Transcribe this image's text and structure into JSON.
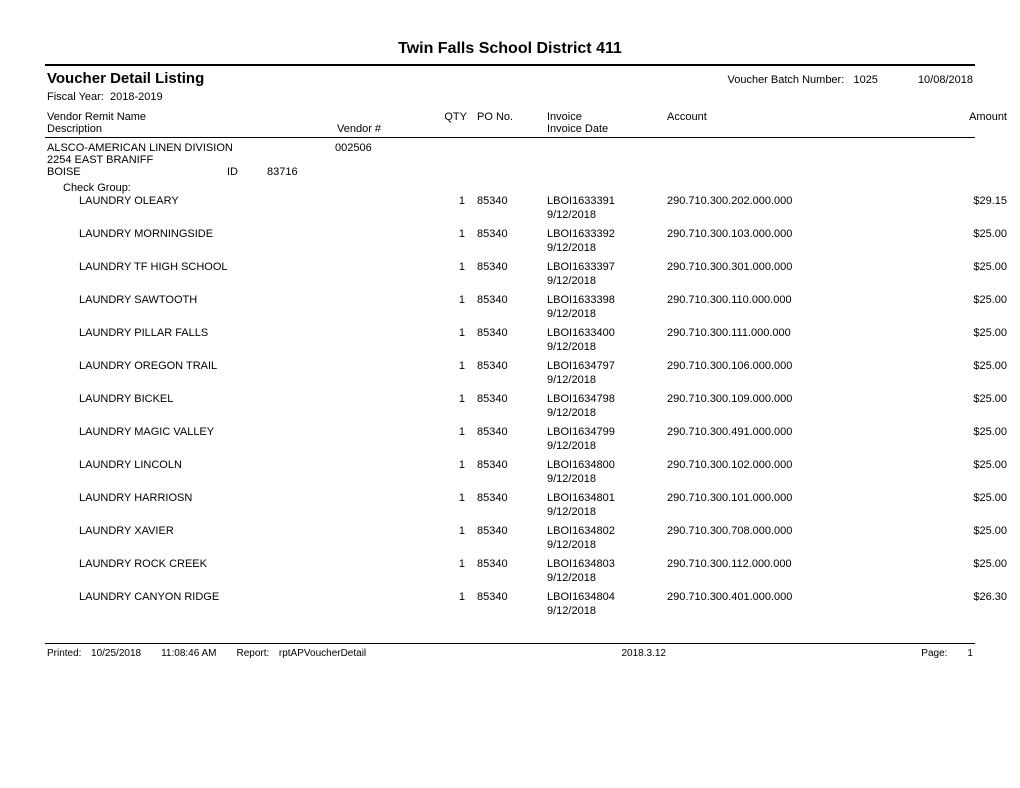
{
  "header": {
    "org_title": "Twin Falls School District 411",
    "report_title": "Voucher Detail Listing",
    "batch_label": "Voucher Batch Number:",
    "batch_number": "1025",
    "report_date": "10/08/2018",
    "fiscal_label": "Fiscal Year:",
    "fiscal_year": "2018-2019"
  },
  "columns": {
    "vendor_remit_name": "Vendor Remit Name",
    "description": "Description",
    "vendor_num": "Vendor #",
    "qty": "QTY",
    "po_no": "PO No.",
    "invoice": "Invoice",
    "invoice_date": "Invoice Date",
    "account": "Account",
    "amount": "Amount"
  },
  "vendor": {
    "name": "ALSCO-AMERICAN LINEN DIVISION",
    "number": "002506",
    "address1": "2254 EAST BRANIFF",
    "city": "BOISE",
    "state": "ID",
    "zip": "83716",
    "check_group_label": "Check Group:"
  },
  "lines": [
    {
      "desc": "LAUNDRY OLEARY",
      "qty": "1",
      "po": "85340",
      "invoice": "LBOI1633391",
      "date": "9/12/2018",
      "account": "290.710.300.202.000.000",
      "amount": "$29.15"
    },
    {
      "desc": "LAUNDRY MORNINGSIDE",
      "qty": "1",
      "po": "85340",
      "invoice": "LBOI1633392",
      "date": "9/12/2018",
      "account": "290.710.300.103.000.000",
      "amount": "$25.00"
    },
    {
      "desc": "LAUNDRY TF HIGH SCHOOL",
      "qty": "1",
      "po": "85340",
      "invoice": "LBOI1633397",
      "date": "9/12/2018",
      "account": "290.710.300.301.000.000",
      "amount": "$25.00"
    },
    {
      "desc": "LAUNDRY SAWTOOTH",
      "qty": "1",
      "po": "85340",
      "invoice": "LBOI1633398",
      "date": "9/12/2018",
      "account": "290.710.300.110.000.000",
      "amount": "$25.00"
    },
    {
      "desc": "LAUNDRY PILLAR FALLS",
      "qty": "1",
      "po": "85340",
      "invoice": "LBOI1633400",
      "date": "9/12/2018",
      "account": "290.710.300.111.000.000",
      "amount": "$25.00"
    },
    {
      "desc": "LAUNDRY OREGON TRAIL",
      "qty": "1",
      "po": "85340",
      "invoice": "LBOI1634797",
      "date": "9/12/2018",
      "account": "290.710.300.106.000.000",
      "amount": "$25.00"
    },
    {
      "desc": "LAUNDRY BICKEL",
      "qty": "1",
      "po": "85340",
      "invoice": "LBOI1634798",
      "date": "9/12/2018",
      "account": "290.710.300.109.000.000",
      "amount": "$25.00"
    },
    {
      "desc": "LAUNDRY MAGIC VALLEY",
      "qty": "1",
      "po": "85340",
      "invoice": "LBOI1634799",
      "date": "9/12/2018",
      "account": "290.710.300.491.000.000",
      "amount": "$25.00"
    },
    {
      "desc": "LAUNDRY LINCOLN",
      "qty": "1",
      "po": "85340",
      "invoice": "LBOI1634800",
      "date": "9/12/2018",
      "account": "290.710.300.102.000.000",
      "amount": "$25.00"
    },
    {
      "desc": "LAUNDRY HARRIOSN",
      "qty": "1",
      "po": "85340",
      "invoice": "LBOI1634801",
      "date": "9/12/2018",
      "account": "290.710.300.101.000.000",
      "amount": "$25.00"
    },
    {
      "desc": "LAUNDRY XAVIER",
      "qty": "1",
      "po": "85340",
      "invoice": "LBOI1634802",
      "date": "9/12/2018",
      "account": "290.710.300.708.000.000",
      "amount": "$25.00"
    },
    {
      "desc": "LAUNDRY ROCK CREEK",
      "qty": "1",
      "po": "85340",
      "invoice": "LBOI1634803",
      "date": "9/12/2018",
      "account": "290.710.300.112.000.000",
      "amount": "$25.00"
    },
    {
      "desc": "LAUNDRY CANYON RIDGE",
      "qty": "1",
      "po": "85340",
      "invoice": "LBOI1634804",
      "date": "9/12/2018",
      "account": "290.710.300.401.000.000",
      "amount": "$26.30"
    }
  ],
  "footer": {
    "printed_label": "Printed:",
    "printed_date": "10/25/2018",
    "printed_time": "11:08:46 AM",
    "report_label": "Report:",
    "report_name": "rptAPVoucherDetail",
    "version": "2018.3.12",
    "page_label": "Page:",
    "page_num": "1"
  }
}
